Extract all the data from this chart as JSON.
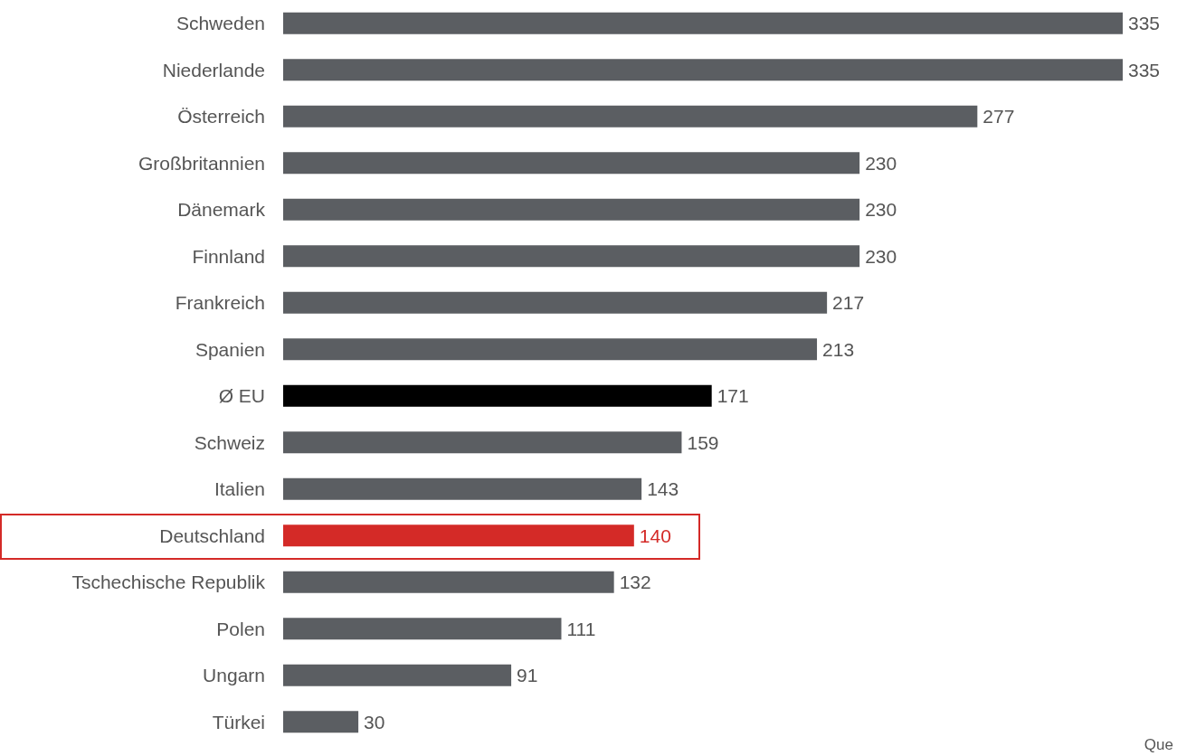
{
  "chart_data": {
    "type": "bar",
    "orientation": "horizontal",
    "data_labels": true,
    "categories": [
      "Schweden",
      "Niederlande",
      "Österreich",
      "Großbritannien",
      "Dänemark",
      "Finnland",
      "Frankreich",
      "Spanien",
      "Ø EU",
      "Schweiz",
      "Italien",
      "Deutschland",
      "Tschechische Republik",
      "Polen",
      "Ungarn",
      "Türkei"
    ],
    "values": [
      335,
      335,
      277,
      230,
      230,
      230,
      217,
      213,
      171,
      159,
      143,
      140,
      132,
      111,
      91,
      30
    ],
    "colors": [
      "#5b5e62",
      "#5b5e62",
      "#5b5e62",
      "#5b5e62",
      "#5b5e62",
      "#5b5e62",
      "#5b5e62",
      "#5b5e62",
      "#000000",
      "#5b5e62",
      "#5b5e62",
      "#d42a27",
      "#5b5e62",
      "#5b5e62",
      "#5b5e62",
      "#5b5e62"
    ],
    "annotations": [
      "Que"
    ]
  }
}
